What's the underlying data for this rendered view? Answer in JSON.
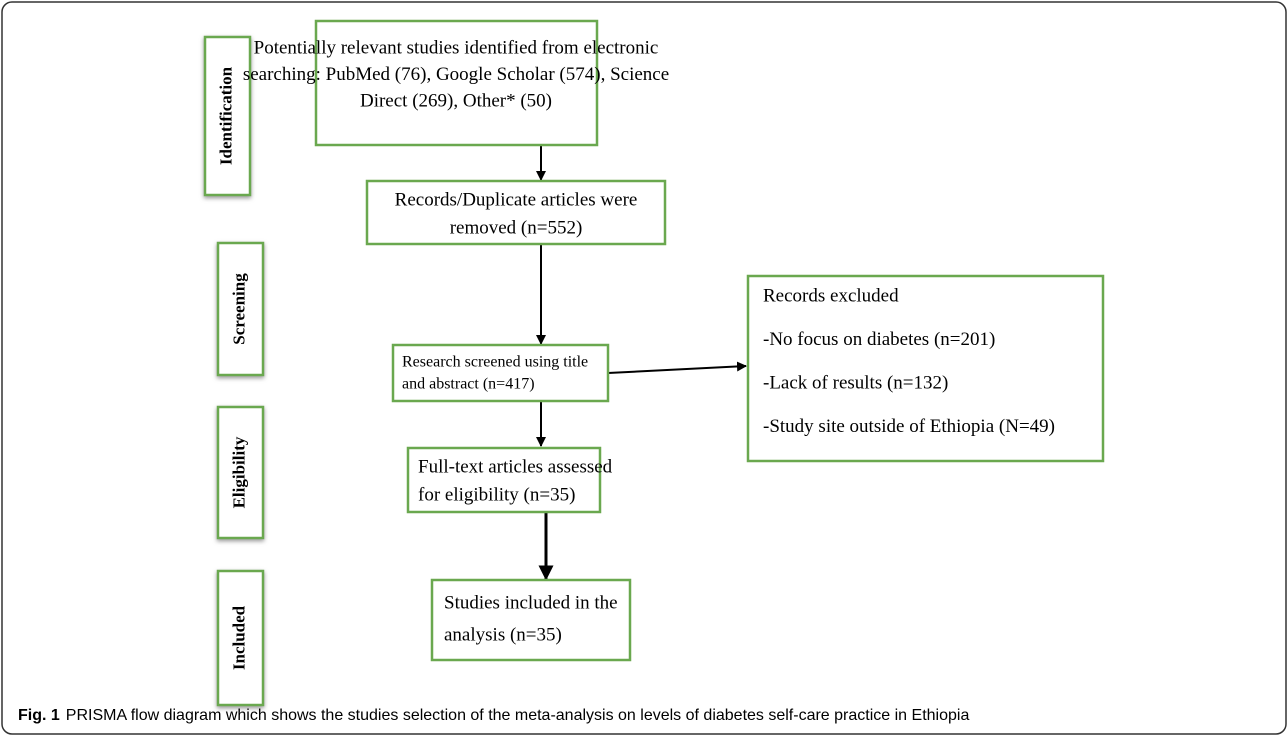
{
  "stages": [
    "Identification",
    "Screening",
    "Eligibility",
    "Included"
  ],
  "nodes": [
    {
      "lines": [
        "Potentially relevant studies identified from electronic",
        "searching: PubMed (76), Google Scholar (574), Science",
        "Direct (269), Other* (50)"
      ]
    },
    {
      "lines": [
        "Records/Duplicate articles were",
        "removed (n=552)"
      ]
    },
    {
      "lines": [
        "Research screened using title",
        "and abstract (n=417)"
      ]
    },
    {
      "lines": [
        "Records excluded",
        "-No focus on diabetes (n=201)",
        "-Lack of results (n=132)",
        "-Study site outside of Ethiopia (N=49)"
      ]
    },
    {
      "lines": [
        "Full-text articles assessed",
        "for eligibility (n=35)"
      ]
    },
    {
      "lines": [
        "Studies included in the",
        "analysis (n=35)"
      ]
    }
  ],
  "caption": {
    "label": "Fig. 1",
    "text": "PRISMA flow diagram which shows the studies selection of the meta-analysis on levels of diabetes self-care practice in Ethiopia"
  }
}
